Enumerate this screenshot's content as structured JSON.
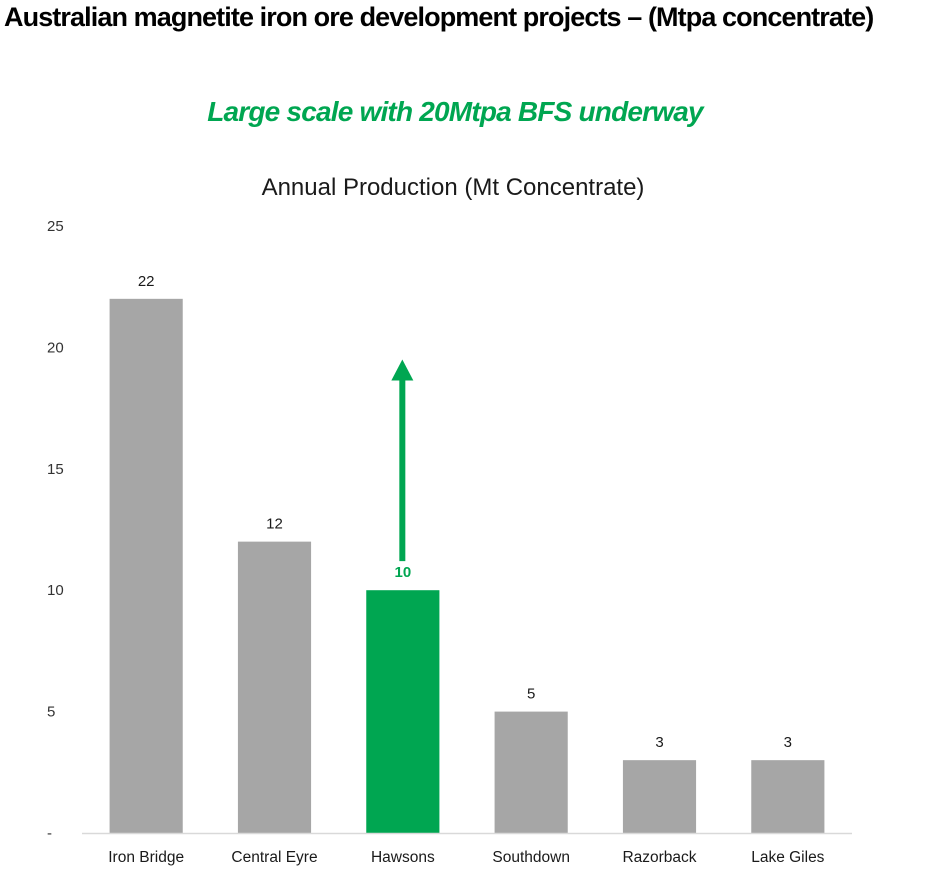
{
  "page": {
    "title": "Australian magnetite iron ore development projects – (Mtpa concentrate)",
    "subtitle": "Large scale with 20Mtpa BFS underway"
  },
  "colors": {
    "bar": "#A6A6A6",
    "highlight": "#00A651",
    "axis": "#D9D9D9"
  },
  "chart_data": {
    "type": "bar",
    "title": "Annual Production (Mt Concentrate)",
    "xlabel": "",
    "ylabel": "",
    "ylim": [
      0,
      25
    ],
    "yticks": [
      0,
      5,
      10,
      15,
      20,
      25
    ],
    "ytick_labels": [
      "-",
      "5",
      "10",
      "15",
      "20",
      "25"
    ],
    "grid": false,
    "categories": [
      "Iron Bridge",
      "Central Eyre",
      "Hawsons",
      "Southdown",
      "Razorback",
      "Lake Giles"
    ],
    "values": [
      22,
      12,
      10,
      5,
      3,
      3
    ],
    "data_labels": [
      "22",
      "12",
      "10",
      "5",
      "3",
      "3"
    ],
    "highlight_category": "Hawsons",
    "annotation": {
      "type": "arrow",
      "category": "Hawsons",
      "from_value": 11.2,
      "to_value": 19.5,
      "meaning": "expansion to 20Mtpa"
    }
  }
}
